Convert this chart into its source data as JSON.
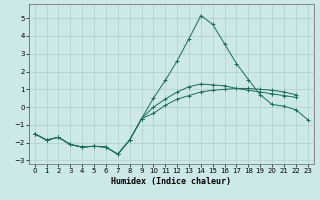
{
  "xlabel": "Humidex (Indice chaleur)",
  "background_color": "#cce8e8",
  "grid_color": "#b0cccc",
  "line_color": "#1a6b5a",
  "xlim": [
    -0.5,
    23.5
  ],
  "ylim": [
    -3.2,
    5.8
  ],
  "x": [
    0,
    1,
    2,
    3,
    4,
    5,
    6,
    7,
    8,
    9,
    10,
    11,
    12,
    13,
    14,
    15,
    16,
    17,
    18,
    19,
    20,
    21,
    22,
    23
  ],
  "series1": [
    -1.5,
    -1.85,
    -1.7,
    -2.1,
    -2.25,
    -2.2,
    -2.25,
    -2.65,
    -1.85,
    -0.65,
    -0.35,
    0.1,
    0.45,
    0.65,
    0.85,
    0.95,
    1.0,
    1.05,
    1.05,
    1.0,
    0.95,
    0.85,
    0.7,
    null
  ],
  "series2": [
    -1.5,
    -1.85,
    -1.7,
    -2.1,
    -2.25,
    -2.2,
    -2.25,
    -2.65,
    -1.85,
    -0.65,
    0.0,
    0.45,
    0.85,
    1.15,
    1.3,
    1.25,
    1.2,
    1.05,
    0.95,
    0.85,
    0.75,
    0.65,
    0.55,
    null
  ],
  "series3": [
    -1.5,
    -1.85,
    -1.7,
    -2.1,
    -2.25,
    -2.2,
    -2.25,
    -2.65,
    -1.85,
    -0.65,
    0.5,
    1.5,
    2.6,
    3.85,
    5.15,
    4.65,
    3.55,
    2.45,
    1.55,
    0.7,
    0.15,
    0.05,
    -0.15,
    -0.7
  ],
  "yticks": [
    -3,
    -2,
    -1,
    0,
    1,
    2,
    3,
    4,
    5
  ],
  "xticks": [
    0,
    1,
    2,
    3,
    4,
    5,
    6,
    7,
    8,
    9,
    10,
    11,
    12,
    13,
    14,
    15,
    16,
    17,
    18,
    19,
    20,
    21,
    22,
    23
  ]
}
